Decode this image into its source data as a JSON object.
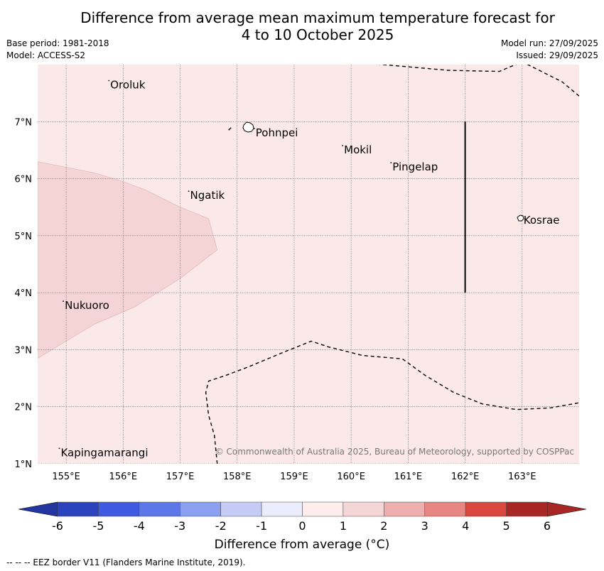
{
  "title_line1": "Difference from average mean maximum temperature forecast for",
  "title_line2": "4 to 10 October 2025",
  "base_period": "Base period: 1981-2018",
  "model": "Model: ACCESS-S2",
  "model_run": "Model run: 27/09/2025",
  "issued": "Issued: 29/09/2025",
  "copyright": "© Commonwealth of Australia 2025, Bureau of Meteorology, supported by COSPPac",
  "colorbar_label": "Difference from average (°C)",
  "eez_note": "--  --  -- EEZ border V11 (Flanders Marine Institute, 2019).",
  "lon_ticks": [
    "155°E",
    "156°E",
    "157°E",
    "158°E",
    "159°E",
    "160°E",
    "161°E",
    "162°E",
    "163°E"
  ],
  "lat_ticks": [
    "7°N",
    "6°N",
    "5°N",
    "4°N",
    "3°N",
    "2°N",
    "1°N"
  ],
  "colorbar_ticks": [
    "-6",
    "-5",
    "-4",
    "-3",
    "-2",
    "-1",
    "0",
    "1",
    "2",
    "3",
    "4",
    "5",
    "6"
  ],
  "colors": {
    "background_anomaly": "#fbe9e9",
    "anomaly_1_2": "#f4d4d4",
    "bins": [
      "#2236a0",
      "#2b43bd",
      "#3d5ae0",
      "#5d77e8",
      "#8a9ff0",
      "#c4ccf6",
      "#ebedfc",
      "#fdeded",
      "#f5d6d6",
      "#eeafaf",
      "#e68582",
      "#da473e",
      "#a82624"
    ]
  },
  "places": [
    {
      "name": "Oroluk",
      "lon": 155.75,
      "lat": 7.72
    },
    {
      "name": "Pohnpei",
      "lon": 158.3,
      "lat": 6.88
    },
    {
      "name": "Mokil",
      "lon": 159.85,
      "lat": 6.58
    },
    {
      "name": "Pingelap",
      "lon": 160.7,
      "lat": 6.28
    },
    {
      "name": "Ngatik",
      "lon": 157.15,
      "lat": 5.78
    },
    {
      "name": "Kosrae",
      "lon": 163.0,
      "lat": 5.35
    },
    {
      "name": "Nukuoro",
      "lon": 154.95,
      "lat": 3.85
    },
    {
      "name": "Kapingamarangi",
      "lon": 154.88,
      "lat": 1.27
    }
  ],
  "chart_data": {
    "type": "heatmap",
    "lon_range": [
      154.5,
      164.0
    ],
    "lat_range": [
      1.0,
      8.0
    ],
    "background_anomaly_bin": "0 to 1 °C",
    "regions": [
      {
        "bin": "1 to 2 °C",
        "polygon_lonlat": [
          [
            154.5,
            6.3
          ],
          [
            155.0,
            6.2
          ],
          [
            155.5,
            6.1
          ],
          [
            156.0,
            5.95
          ],
          [
            156.4,
            5.8
          ],
          [
            157.0,
            5.5
          ],
          [
            157.5,
            5.3
          ],
          [
            157.65,
            4.75
          ],
          [
            157.0,
            4.25
          ],
          [
            156.2,
            3.75
          ],
          [
            155.5,
            3.45
          ],
          [
            154.5,
            2.85
          ]
        ]
      }
    ],
    "boundaries": [
      {
        "name": "EEZ border",
        "line": [
          [
            160.0,
            8.05
          ],
          [
            161.7,
            7.9
          ],
          [
            162.6,
            7.88
          ],
          [
            163.0,
            8.05
          ],
          [
            163.7,
            7.7
          ],
          [
            164.0,
            7.45
          ]
        ]
      },
      {
        "name": "EEZ border",
        "line": [
          [
            157.65,
            1.0
          ],
          [
            157.6,
            1.5
          ],
          [
            157.5,
            1.85
          ],
          [
            157.45,
            2.25
          ],
          [
            157.5,
            2.45
          ],
          [
            157.8,
            2.55
          ],
          [
            158.2,
            2.7
          ],
          [
            158.8,
            2.95
          ],
          [
            159.3,
            3.15
          ],
          [
            159.6,
            3.05
          ],
          [
            160.2,
            2.9
          ],
          [
            160.9,
            2.84
          ],
          [
            161.3,
            2.55
          ],
          [
            161.8,
            2.25
          ],
          [
            162.3,
            2.05
          ],
          [
            162.9,
            1.95
          ],
          [
            163.5,
            1.98
          ],
          [
            164.0,
            2.07
          ]
        ]
      },
      {
        "name": "EEZ border",
        "line": [
          [
            157.85,
            6.85
          ],
          [
            157.9,
            6.9
          ]
        ]
      }
    ],
    "solid_line": {
      "lon": 162.0,
      "lat_from": 4.0,
      "lat_to": 7.0
    },
    "colorbar": {
      "bounds": [
        -6,
        -5,
        -4,
        -3,
        -2,
        -1,
        0,
        1,
        2,
        3,
        4,
        5,
        6
      ],
      "extend": "both",
      "label": "Difference from average (°C)"
    }
  }
}
